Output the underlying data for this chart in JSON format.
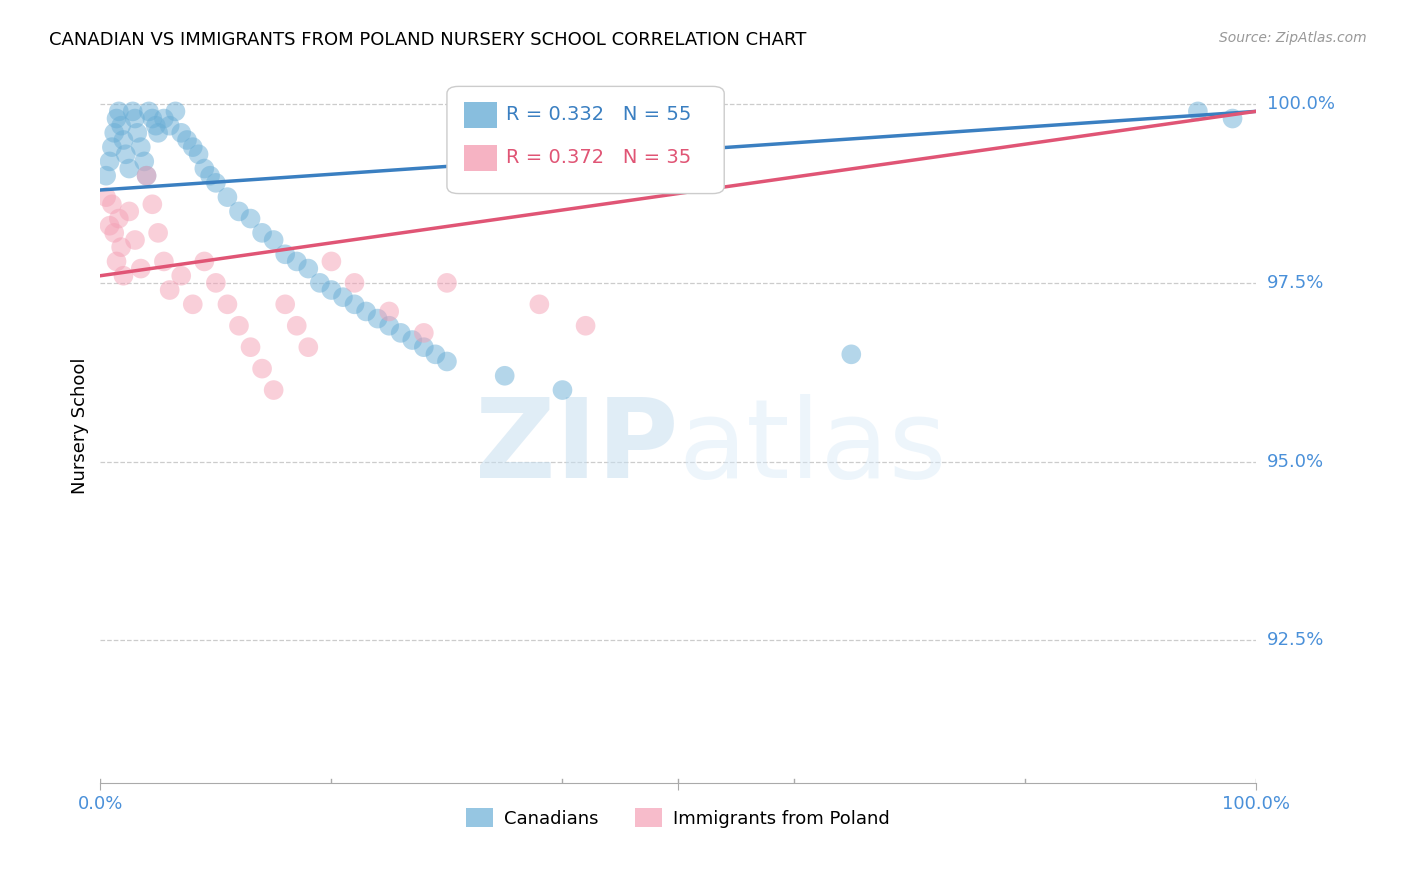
{
  "title": "CANADIAN VS IMMIGRANTS FROM POLAND NURSERY SCHOOL CORRELATION CHART",
  "source": "Source: ZipAtlas.com",
  "ylabel": "Nursery School",
  "xlim": [
    0.0,
    1.0
  ],
  "ylim": [
    0.905,
    1.005
  ],
  "yticks": [
    0.925,
    0.95,
    0.975,
    1.0
  ],
  "ytick_labels": [
    "92.5%",
    "95.0%",
    "97.5%",
    "100.0%"
  ],
  "canadian_R": 0.332,
  "canadian_N": 55,
  "poland_R": 0.372,
  "poland_N": 35,
  "canadian_color": "#6aaed6",
  "poland_color": "#f4a0b5",
  "trend_canadian_color": "#3a7fc1",
  "trend_poland_color": "#e05575",
  "legend_canadian": "Canadians",
  "legend_poland": "Immigrants from Poland",
  "watermark_zip": "ZIP",
  "watermark_atlas": "atlas",
  "ca_x": [
    0.005,
    0.008,
    0.01,
    0.012,
    0.014,
    0.016,
    0.018,
    0.02,
    0.022,
    0.025,
    0.028,
    0.03,
    0.032,
    0.035,
    0.038,
    0.04,
    0.042,
    0.045,
    0.048,
    0.05,
    0.055,
    0.06,
    0.065,
    0.07,
    0.075,
    0.08,
    0.085,
    0.09,
    0.095,
    0.1,
    0.11,
    0.12,
    0.13,
    0.14,
    0.15,
    0.16,
    0.17,
    0.18,
    0.19,
    0.2,
    0.21,
    0.22,
    0.23,
    0.24,
    0.25,
    0.26,
    0.27,
    0.28,
    0.29,
    0.3,
    0.35,
    0.4,
    0.65,
    0.95,
    0.98
  ],
  "ca_y": [
    0.99,
    0.992,
    0.994,
    0.996,
    0.998,
    0.999,
    0.997,
    0.995,
    0.993,
    0.991,
    0.999,
    0.998,
    0.996,
    0.994,
    0.992,
    0.99,
    0.999,
    0.998,
    0.997,
    0.996,
    0.998,
    0.997,
    0.999,
    0.996,
    0.995,
    0.994,
    0.993,
    0.991,
    0.99,
    0.989,
    0.987,
    0.985,
    0.984,
    0.982,
    0.981,
    0.979,
    0.978,
    0.977,
    0.975,
    0.974,
    0.973,
    0.972,
    0.971,
    0.97,
    0.969,
    0.968,
    0.967,
    0.966,
    0.965,
    0.964,
    0.962,
    0.96,
    0.965,
    0.999,
    0.998
  ],
  "po_x": [
    0.005,
    0.008,
    0.01,
    0.012,
    0.014,
    0.016,
    0.018,
    0.02,
    0.025,
    0.03,
    0.035,
    0.04,
    0.045,
    0.05,
    0.055,
    0.06,
    0.07,
    0.08,
    0.09,
    0.1,
    0.11,
    0.12,
    0.13,
    0.14,
    0.15,
    0.16,
    0.17,
    0.18,
    0.2,
    0.22,
    0.25,
    0.28,
    0.3,
    0.38,
    0.42
  ],
  "po_y": [
    0.987,
    0.983,
    0.986,
    0.982,
    0.978,
    0.984,
    0.98,
    0.976,
    0.985,
    0.981,
    0.977,
    0.99,
    0.986,
    0.982,
    0.978,
    0.974,
    0.976,
    0.972,
    0.978,
    0.975,
    0.972,
    0.969,
    0.966,
    0.963,
    0.96,
    0.972,
    0.969,
    0.966,
    0.978,
    0.975,
    0.971,
    0.968,
    0.975,
    0.972,
    0.969
  ],
  "ca_trend_x0": 0.0,
  "ca_trend_y0": 0.988,
  "ca_trend_x1": 1.0,
  "ca_trend_y1": 0.999,
  "po_trend_x0": 0.0,
  "po_trend_y0": 0.976,
  "po_trend_x1": 1.0,
  "po_trend_y1": 0.999
}
